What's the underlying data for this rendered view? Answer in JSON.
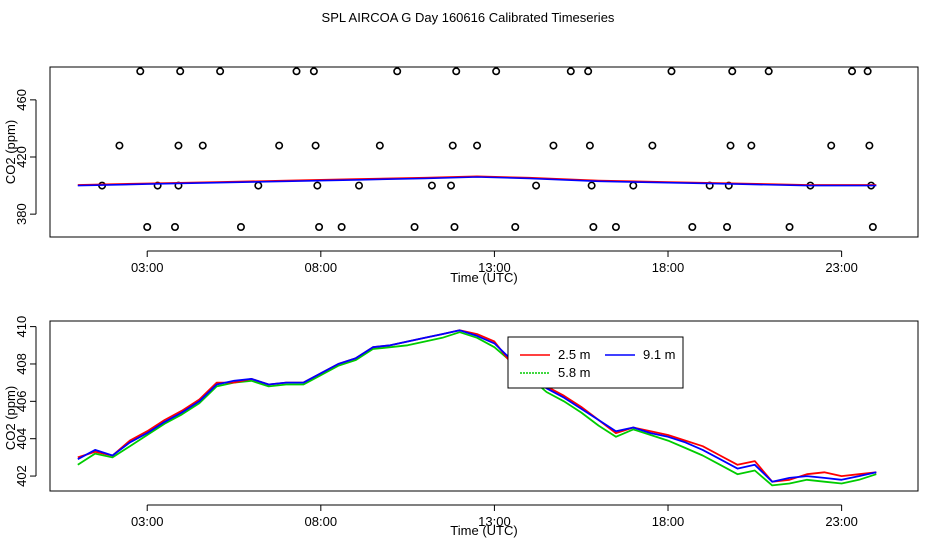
{
  "title": "SPL AIRCOA G  Day 160616  Calibrated Timeseries",
  "colors": {
    "red": "#ff0000",
    "green": "#00cc00",
    "blue": "#0000ff",
    "black": "#000000"
  },
  "chart_data": [
    {
      "type": "scatter",
      "xlabel": "Time (UTC)",
      "ylabel": "CO2 (ppm)",
      "xlim": [
        0.2,
        25.2
      ],
      "ylim": [
        364,
        483
      ],
      "xticks": [
        3,
        8,
        13,
        18,
        23
      ],
      "xtick_labels": [
        "03:00",
        "08:00",
        "13:00",
        "18:00",
        "23:00"
      ],
      "yticks": [
        380,
        420,
        460
      ],
      "ytick_labels": [
        "380",
        "420",
        "460"
      ],
      "points": [
        [
          1.7,
          400
        ],
        [
          2.2,
          428
        ],
        [
          2.8,
          480
        ],
        [
          3.0,
          371
        ],
        [
          3.3,
          400
        ],
        [
          3.8,
          371
        ],
        [
          3.9,
          400
        ],
        [
          3.9,
          428
        ],
        [
          3.95,
          480
        ],
        [
          4.6,
          428
        ],
        [
          5.1,
          480
        ],
        [
          5.7,
          371
        ],
        [
          6.2,
          400
        ],
        [
          6.8,
          428
        ],
        [
          7.3,
          480
        ],
        [
          7.8,
          480
        ],
        [
          7.85,
          428
        ],
        [
          7.9,
          400
        ],
        [
          7.95,
          371
        ],
        [
          8.6,
          371
        ],
        [
          9.1,
          400
        ],
        [
          9.7,
          428
        ],
        [
          10.2,
          480
        ],
        [
          10.7,
          371
        ],
        [
          11.2,
          400
        ],
        [
          11.75,
          400
        ],
        [
          11.8,
          428
        ],
        [
          11.85,
          371
        ],
        [
          11.9,
          480
        ],
        [
          12.5,
          428
        ],
        [
          13.05,
          480
        ],
        [
          13.6,
          371
        ],
        [
          14.2,
          400
        ],
        [
          14.7,
          428
        ],
        [
          15.2,
          480
        ],
        [
          15.7,
          480
        ],
        [
          15.75,
          428
        ],
        [
          15.8,
          400
        ],
        [
          15.85,
          371
        ],
        [
          16.5,
          371
        ],
        [
          17.0,
          400
        ],
        [
          17.55,
          428
        ],
        [
          18.1,
          480
        ],
        [
          18.7,
          371
        ],
        [
          19.2,
          400
        ],
        [
          19.7,
          371
        ],
        [
          19.75,
          400
        ],
        [
          19.8,
          428
        ],
        [
          19.85,
          480
        ],
        [
          20.4,
          428
        ],
        [
          20.9,
          480
        ],
        [
          21.5,
          371
        ],
        [
          22.1,
          400
        ],
        [
          22.7,
          428
        ],
        [
          23.3,
          480
        ],
        [
          23.75,
          480
        ],
        [
          23.8,
          428
        ],
        [
          23.85,
          400
        ],
        [
          23.9,
          371
        ]
      ],
      "series": [
        {
          "name": "red",
          "color": "#ff0000",
          "x": [
            1,
            3,
            5,
            7,
            9,
            11,
            12.5,
            14,
            16,
            18,
            20,
            22,
            24
          ],
          "y": [
            400.5,
            401.5,
            402.5,
            403.5,
            404.5,
            405.5,
            406.5,
            405.5,
            403.5,
            402.5,
            401.5,
            400.5,
            400.5
          ]
        },
        {
          "name": "blue",
          "color": "#0000ff",
          "x": [
            1,
            3,
            5,
            7,
            9,
            11,
            12.5,
            14,
            16,
            18,
            20,
            22,
            24
          ],
          "y": [
            400,
            401,
            402,
            403,
            404,
            405,
            406,
            405,
            403,
            402,
            401,
            400,
            400
          ]
        }
      ]
    },
    {
      "type": "line",
      "xlabel": "Time (UTC)",
      "ylabel": "CO2 (ppm)",
      "xlim": [
        0.2,
        25.2
      ],
      "ylim": [
        401.2,
        410.3
      ],
      "xticks": [
        3,
        8,
        13,
        18,
        23
      ],
      "xtick_labels": [
        "03:00",
        "08:00",
        "13:00",
        "18:00",
        "23:00"
      ],
      "yticks": [
        402,
        404,
        406,
        408,
        410
      ],
      "ytick_labels": [
        "402",
        "404",
        "406",
        "408",
        "410"
      ],
      "x": [
        1.0,
        1.5,
        2.0,
        2.5,
        3.0,
        3.5,
        4.0,
        4.5,
        5.0,
        5.5,
        6.0,
        6.5,
        7.0,
        7.5,
        8.0,
        8.5,
        9.0,
        9.5,
        10.0,
        10.5,
        11.0,
        11.5,
        12.0,
        12.5,
        13.0,
        13.5,
        14.0,
        14.5,
        15.0,
        15.5,
        16.0,
        16.5,
        17.0,
        17.5,
        18.0,
        18.5,
        19.0,
        19.5,
        20.0,
        20.5,
        21.0,
        21.5,
        22.0,
        22.5,
        23.0,
        23.5,
        24.0
      ],
      "series": [
        {
          "name": "2.5 m",
          "color": "#ff0000",
          "values": [
            403.0,
            403.3,
            403.1,
            403.9,
            404.4,
            405.0,
            405.5,
            406.1,
            407.0,
            407.0,
            407.2,
            406.9,
            407.0,
            407.0,
            407.5,
            408.0,
            408.3,
            408.9,
            409.0,
            409.2,
            409.4,
            409.6,
            409.8,
            409.6,
            409.2,
            408.0,
            407.6,
            406.8,
            406.3,
            405.7,
            405.0,
            404.3,
            404.6,
            404.4,
            404.2,
            403.9,
            403.6,
            403.1,
            402.6,
            402.8,
            401.7,
            401.8,
            402.1,
            402.2,
            402.0,
            402.1,
            402.2
          ]
        },
        {
          "name": "5.8 m",
          "color": "#00cc00",
          "values": [
            402.6,
            403.2,
            403.0,
            403.6,
            404.2,
            404.8,
            405.3,
            405.9,
            406.8,
            407.0,
            407.1,
            406.8,
            406.9,
            406.9,
            407.4,
            407.9,
            408.2,
            408.8,
            408.9,
            409.0,
            409.2,
            409.4,
            409.7,
            409.4,
            408.9,
            408.1,
            407.3,
            406.5,
            406.0,
            405.4,
            404.7,
            404.1,
            404.5,
            404.2,
            403.9,
            403.5,
            403.1,
            402.6,
            402.1,
            402.3,
            401.5,
            401.6,
            401.8,
            401.7,
            401.6,
            401.8,
            402.1
          ]
        },
        {
          "name": "9.1 m",
          "color": "#0000ff",
          "values": [
            402.9,
            403.4,
            403.1,
            403.8,
            404.3,
            404.9,
            405.4,
            406.0,
            406.9,
            407.1,
            407.2,
            406.9,
            407.0,
            407.0,
            407.5,
            408.0,
            408.3,
            408.9,
            409.0,
            409.2,
            409.4,
            409.6,
            409.8,
            409.5,
            409.1,
            408.2,
            407.5,
            406.7,
            406.2,
            405.6,
            405.0,
            404.4,
            404.6,
            404.3,
            404.1,
            403.8,
            403.4,
            402.9,
            402.4,
            402.6,
            401.7,
            401.9,
            402.0,
            401.9,
            401.8,
            402.0,
            402.2
          ]
        }
      ],
      "legend": {
        "position": "top-center",
        "entries": [
          "2.5 m",
          "9.1 m",
          "5.8 m"
        ]
      }
    }
  ]
}
